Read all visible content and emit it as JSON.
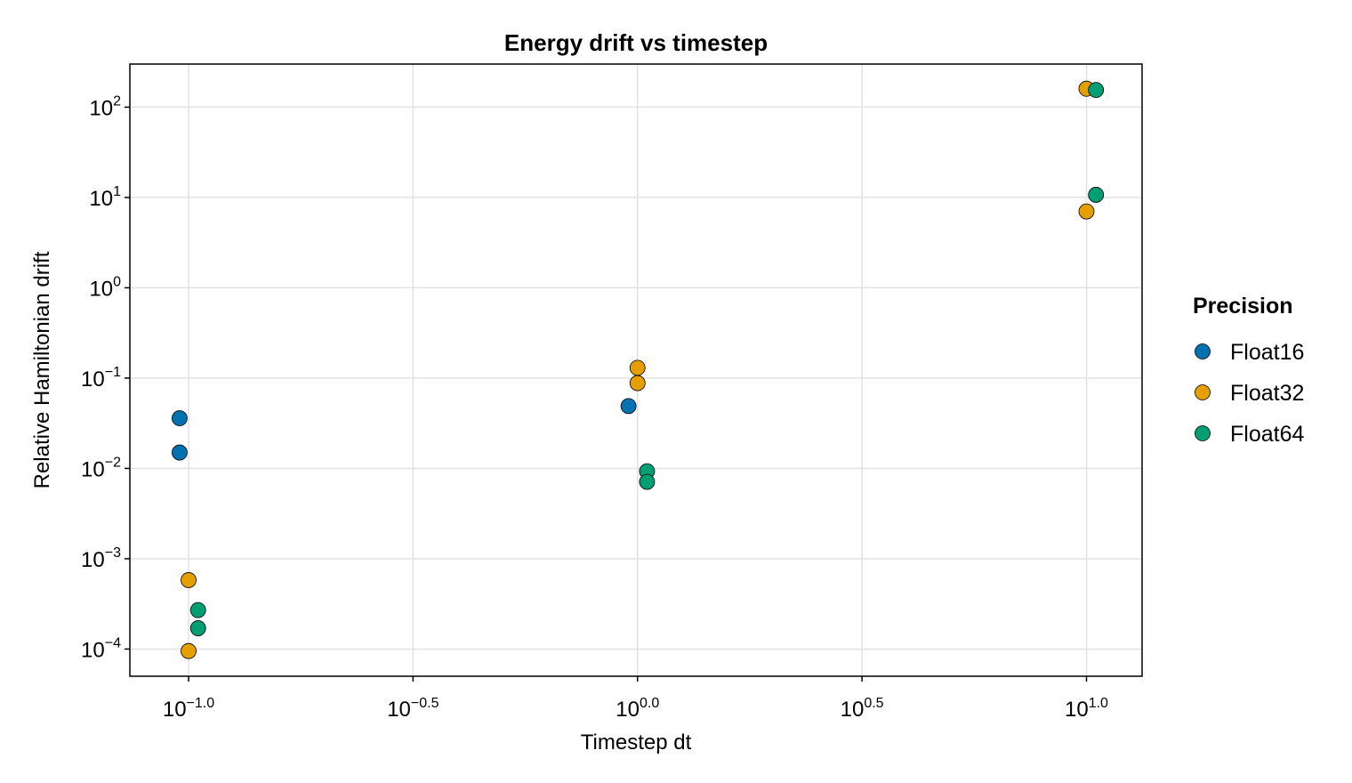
{
  "chart_data": {
    "type": "scatter",
    "title": "Energy drift vs timestep",
    "xlabel": "Timestep dt",
    "ylabel": "Relative Hamiltonian drift",
    "xscale": "log10",
    "yscale": "log10",
    "xlim": [
      0.074,
      13.3
    ],
    "ylim": [
      5e-05,
      300
    ],
    "x_ticks": [
      {
        "value": 0.1,
        "base": "10",
        "exp": "−1.0"
      },
      {
        "value": 0.3162,
        "base": "10",
        "exp": "−0.5"
      },
      {
        "value": 1.0,
        "base": "10",
        "exp": "0.0"
      },
      {
        "value": 3.162,
        "base": "10",
        "exp": "0.5"
      },
      {
        "value": 10.0,
        "base": "10",
        "exp": "1.0"
      }
    ],
    "y_ticks": [
      {
        "value": 0.0001,
        "base": "10",
        "exp": "−4"
      },
      {
        "value": 0.001,
        "base": "10",
        "exp": "−3"
      },
      {
        "value": 0.01,
        "base": "10",
        "exp": "−2"
      },
      {
        "value": 0.1,
        "base": "10",
        "exp": "−1"
      },
      {
        "value": 1,
        "base": "10",
        "exp": "0"
      },
      {
        "value": 10,
        "base": "10",
        "exp": "1"
      },
      {
        "value": 100,
        "base": "10",
        "exp": "2"
      }
    ],
    "grid": true,
    "legend": {
      "title": "Precision",
      "placement": "right"
    },
    "series": [
      {
        "name": "Float16",
        "color": "#0072b2",
        "points": [
          {
            "x": 0.0955,
            "y": 0.036
          },
          {
            "x": 0.0955,
            "y": 0.015
          },
          {
            "x": 0.955,
            "y": 0.049
          }
        ]
      },
      {
        "name": "Float32",
        "color": "#e69f00",
        "points": [
          {
            "x": 0.1,
            "y": 0.00058
          },
          {
            "x": 0.1,
            "y": 9.5e-05
          },
          {
            "x": 1.0,
            "y": 0.13
          },
          {
            "x": 1.0,
            "y": 0.088
          },
          {
            "x": 10.0,
            "y": 160
          },
          {
            "x": 10.0,
            "y": 7.0
          }
        ]
      },
      {
        "name": "Float64",
        "color": "#009e73",
        "points": [
          {
            "x": 0.105,
            "y": 0.00027
          },
          {
            "x": 0.105,
            "y": 0.00017
          },
          {
            "x": 1.05,
            "y": 0.0093
          },
          {
            "x": 1.05,
            "y": 0.0071
          },
          {
            "x": 10.5,
            "y": 155
          },
          {
            "x": 10.5,
            "y": 10.7
          }
        ]
      }
    ]
  }
}
